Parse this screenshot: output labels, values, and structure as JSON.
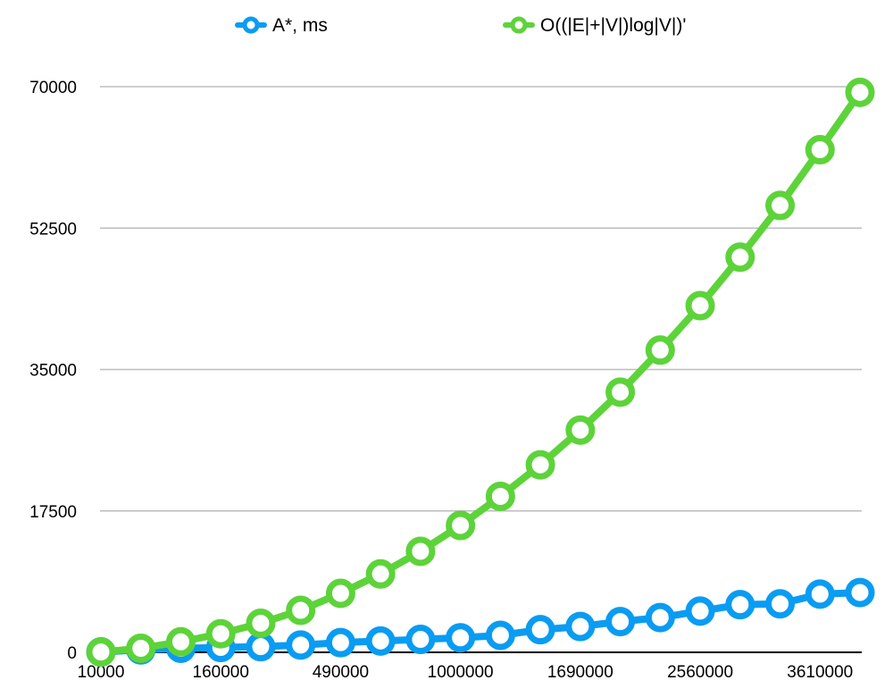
{
  "chart_data": {
    "type": "line",
    "title": "",
    "xlabel": "",
    "ylabel": "",
    "x": [
      10000,
      40000,
      90000,
      160000,
      250000,
      360000,
      490000,
      640000,
      810000,
      1000000,
      1210000,
      1440000,
      1690000,
      1960000,
      2250000,
      2560000,
      2890000,
      3240000,
      3610000,
      4000000
    ],
    "x_tick_labels": [
      "10000",
      "160000",
      "490000",
      "1000000",
      "1690000",
      "2560000",
      "3610000"
    ],
    "x_tick_indices": [
      0,
      3,
      6,
      9,
      12,
      15,
      18
    ],
    "y_ticks": [
      0,
      17500,
      35000,
      52500,
      70000
    ],
    "ylim": [
      0,
      70000
    ],
    "grid": true,
    "legend_position": "top-center",
    "series": [
      {
        "name": "A*, ms",
        "color": "#0a9cf2",
        "values": [
          50,
          300,
          500,
          600,
          700,
          900,
          1200,
          1400,
          1600,
          1800,
          2100,
          2800,
          3200,
          3800,
          4300,
          5100,
          5900,
          6000,
          7200,
          7400
        ]
      },
      {
        "name": "O((|E|+|V|)log|V|)'",
        "color": "#5dd33a",
        "values": [
          40,
          500,
          1300,
          2300,
          3600,
          5200,
          7300,
          9700,
          12500,
          15700,
          19300,
          23200,
          27500,
          32200,
          37400,
          42900,
          48900,
          55300,
          62200,
          69300
        ]
      }
    ]
  }
}
